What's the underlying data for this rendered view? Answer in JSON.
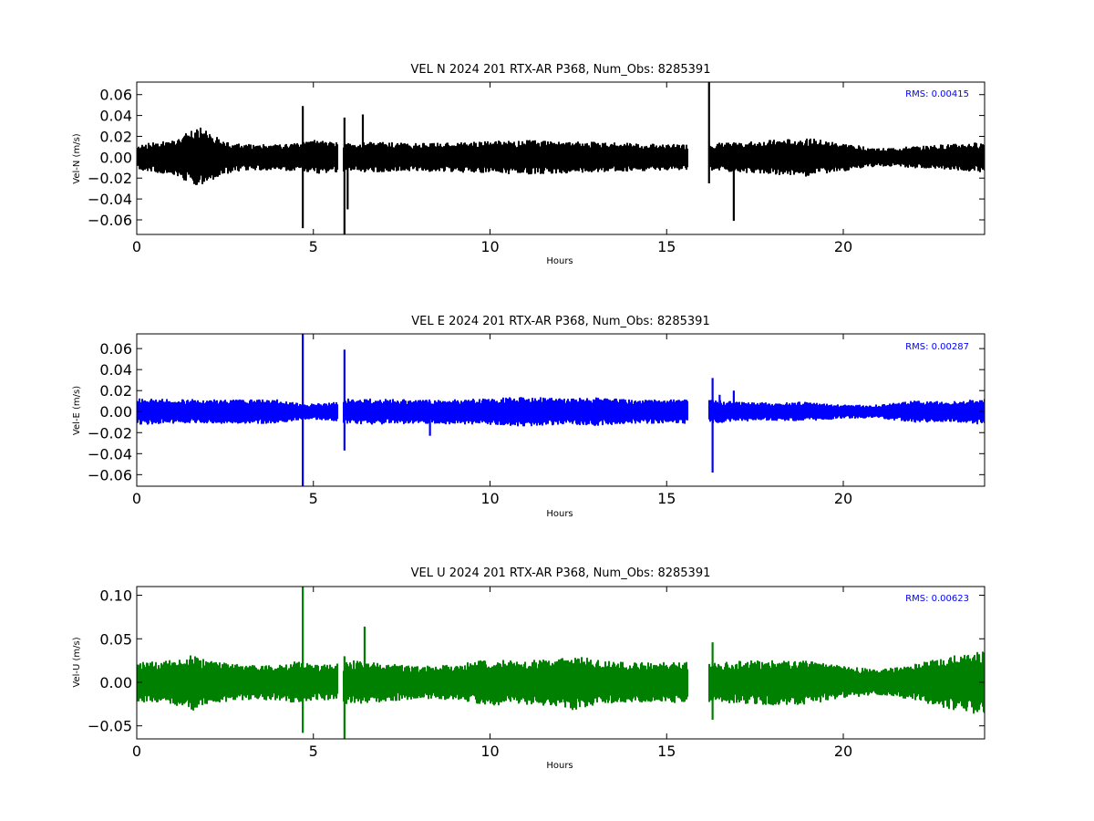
{
  "chart_data": [
    {
      "type": "line",
      "title": "VEL N 2024 201 RTX-AR  P368, Num_Obs: 8285391",
      "xlabel": "Hours",
      "ylabel": "Vel-N (m/s)",
      "xlim": [
        0,
        24
      ],
      "ylim": [
        -0.074,
        0.072
      ],
      "xticks": [
        0,
        5,
        10,
        15,
        20
      ],
      "xtick_labels": [
        "0",
        "5",
        "10",
        "15",
        "20"
      ],
      "yticks": [
        -0.06,
        -0.04,
        -0.02,
        0.0,
        0.02,
        0.04,
        0.06
      ],
      "ytick_labels": [
        "−0.06",
        "−0.04",
        "−0.02",
        "0.00",
        "0.02",
        "0.04",
        "0.06"
      ],
      "rms_label": "RMS:  0.00415",
      "rms_color": "#0000ff",
      "series_color": "#000000",
      "grid": false,
      "gaps": [
        [
          5.7,
          5.85
        ],
        [
          15.6,
          16.2
        ]
      ],
      "envelope": {
        "hours": [
          0,
          1,
          1.5,
          1.8,
          2,
          2.5,
          3,
          4,
          4.6,
          5,
          5.5,
          6,
          7,
          8,
          9,
          10,
          11,
          12,
          13,
          14,
          15,
          15.6,
          16.2,
          17,
          18,
          19,
          20,
          21,
          22,
          23,
          24
        ],
        "amplitude": [
          0.012,
          0.016,
          0.024,
          0.028,
          0.024,
          0.016,
          0.012,
          0.012,
          0.013,
          0.016,
          0.014,
          0.014,
          0.014,
          0.013,
          0.014,
          0.015,
          0.016,
          0.015,
          0.014,
          0.013,
          0.012,
          0.012,
          0.013,
          0.014,
          0.016,
          0.018,
          0.013,
          0.008,
          0.01,
          0.012,
          0.014
        ]
      },
      "spikes": [
        {
          "x": 4.7,
          "min": -0.068,
          "max": 0.049
        },
        {
          "x": 5.88,
          "min": -0.074,
          "max": 0.038
        },
        {
          "x": 5.97,
          "min": -0.05,
          "max": 0.01
        },
        {
          "x": 6.4,
          "min": -0.012,
          "max": 0.041
        },
        {
          "x": 16.2,
          "min": -0.025,
          "max": 0.072
        },
        {
          "x": 16.9,
          "min": -0.061,
          "max": 0.008
        }
      ]
    },
    {
      "type": "line",
      "title": "VEL E 2024 201 RTX-AR  P368, Num_Obs: 8285391",
      "xlabel": "Hours",
      "ylabel": "Vel-E (m/s)",
      "xlim": [
        0,
        24
      ],
      "ylim": [
        -0.071,
        0.074
      ],
      "xticks": [
        0,
        5,
        10,
        15,
        20
      ],
      "xtick_labels": [
        "0",
        "5",
        "10",
        "15",
        "20"
      ],
      "yticks": [
        -0.06,
        -0.04,
        -0.02,
        0.0,
        0.02,
        0.04,
        0.06
      ],
      "ytick_labels": [
        "−0.06",
        "−0.04",
        "−0.02",
        "0.00",
        "0.02",
        "0.04",
        "0.06"
      ],
      "rms_label": "RMS:  0.00287",
      "rms_color": "#0000ff",
      "series_color": "#0000ff",
      "grid": false,
      "gaps": [
        [
          5.7,
          5.85
        ],
        [
          15.6,
          16.2
        ]
      ],
      "envelope": {
        "hours": [
          0,
          2,
          4,
          4.5,
          5,
          5.5,
          6,
          8,
          10,
          11,
          12,
          13,
          14,
          15,
          15.6,
          16.2,
          17,
          18,
          19,
          20,
          21,
          22,
          23,
          24
        ],
        "amplitude": [
          0.012,
          0.011,
          0.011,
          0.008,
          0.007,
          0.008,
          0.012,
          0.011,
          0.012,
          0.014,
          0.012,
          0.013,
          0.011,
          0.011,
          0.011,
          0.011,
          0.009,
          0.008,
          0.009,
          0.006,
          0.006,
          0.01,
          0.009,
          0.012
        ]
      },
      "spikes": [
        {
          "x": 4.7,
          "min": -0.071,
          "max": 0.074
        },
        {
          "x": 5.88,
          "min": -0.037,
          "max": 0.059
        },
        {
          "x": 16.3,
          "min": -0.058,
          "max": 0.032
        },
        {
          "x": 16.5,
          "min": -0.01,
          "max": 0.016
        },
        {
          "x": 16.9,
          "min": -0.008,
          "max": 0.02
        },
        {
          "x": 8.3,
          "min": -0.023,
          "max": 0.01
        }
      ]
    },
    {
      "type": "line",
      "title": "VEL U 2024 201 RTX-AR  P368, Num_Obs: 8285391",
      "xlabel": "Hours",
      "ylabel": "Vel-U (m/s)",
      "xlim": [
        0,
        24
      ],
      "ylim": [
        -0.065,
        0.11
      ],
      "xticks": [
        0,
        5,
        10,
        15,
        20
      ],
      "xtick_labels": [
        "0",
        "5",
        "10",
        "15",
        "20"
      ],
      "yticks": [
        -0.05,
        0.0,
        0.05,
        0.1
      ],
      "ytick_labels": [
        "−0.05",
        "0.00",
        "0.05",
        "0.10"
      ],
      "rms_label": "RMS:  0.00623",
      "rms_color": "#0000ff",
      "series_color": "#008000",
      "grid": false,
      "gaps": [
        [
          5.7,
          5.85
        ],
        [
          15.6,
          16.2
        ]
      ],
      "envelope": {
        "hours": [
          0,
          1,
          1.6,
          2,
          3,
          4,
          4.6,
          5,
          5.5,
          6,
          7,
          8,
          9,
          10,
          11,
          12,
          12.3,
          13,
          14,
          15,
          15.6,
          16.2,
          17,
          18,
          19,
          20,
          21,
          22,
          23,
          24
        ],
        "amplitude": [
          0.022,
          0.025,
          0.032,
          0.024,
          0.02,
          0.02,
          0.024,
          0.02,
          0.02,
          0.025,
          0.022,
          0.018,
          0.02,
          0.026,
          0.025,
          0.027,
          0.032,
          0.025,
          0.022,
          0.023,
          0.023,
          0.022,
          0.024,
          0.026,
          0.025,
          0.018,
          0.014,
          0.02,
          0.03,
          0.038
        ]
      },
      "spikes": [
        {
          "x": 4.7,
          "min": -0.058,
          "max": 0.11
        },
        {
          "x": 5.88,
          "min": -0.065,
          "max": 0.03
        },
        {
          "x": 6.45,
          "min": -0.01,
          "max": 0.064
        },
        {
          "x": 16.3,
          "min": -0.043,
          "max": 0.046
        }
      ]
    }
  ]
}
